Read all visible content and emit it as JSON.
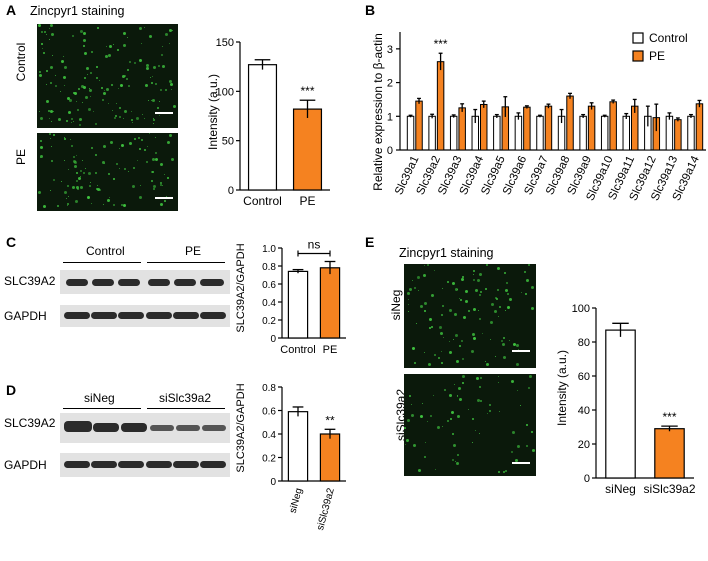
{
  "colors": {
    "control": "#ffffff",
    "treatment": "#f58220",
    "stroke": "#000000",
    "micro_bg": "#0b190b",
    "micro_dot": "#3fc43f",
    "blot_bg": "#e2e2e2",
    "band": "#2b2b2b"
  },
  "panelA": {
    "letter": "A",
    "title": "Zincpyr1 staining",
    "image_labels": [
      "Control",
      "PE"
    ],
    "chart": {
      "type": "bar",
      "categories": [
        "Control",
        "PE"
      ],
      "values": [
        127,
        82
      ],
      "errors": [
        5,
        9
      ],
      "ylabel": "Intensity (a.u.)",
      "ylim": [
        0,
        150
      ],
      "yticks": [
        "0",
        "50",
        "100",
        "150"
      ],
      "annotation": "***"
    }
  },
  "panelB": {
    "letter": "B",
    "chart": {
      "type": "bar",
      "ylabel": "Relative expression to β-actin",
      "ylim": [
        0,
        3.5
      ],
      "yticks": [
        "0",
        "1",
        "2",
        "3"
      ],
      "categories": [
        "Slc39a1",
        "Slc39a2",
        "Slc39a3",
        "Slc39a4",
        "Slc39a5",
        "Slc39a6",
        "Slc39a7",
        "Slc39a8",
        "Slc39a9",
        "Slc39a10",
        "Slc39a11",
        "Slc39a12",
        "Slc39a13",
        "Slc39a14"
      ],
      "series": [
        {
          "name": "Control",
          "values": [
            1.0,
            1.0,
            1.0,
            1.0,
            1.0,
            1.0,
            1.0,
            1.0,
            1.0,
            1.0,
            1.0,
            1.0,
            1.0,
            1.0
          ],
          "errors": [
            0.03,
            0.06,
            0.04,
            0.2,
            0.05,
            0.1,
            0.03,
            0.2,
            0.05,
            0.03,
            0.08,
            0.3,
            0.1,
            0.05
          ]
        },
        {
          "name": "PE",
          "values": [
            1.45,
            2.62,
            1.25,
            1.35,
            1.28,
            1.27,
            1.3,
            1.6,
            1.3,
            1.43,
            1.3,
            0.96,
            0.9,
            1.37
          ],
          "errors": [
            0.08,
            0.25,
            0.12,
            0.1,
            0.3,
            0.04,
            0.06,
            0.08,
            0.1,
            0.05,
            0.2,
            0.4,
            0.05,
            0.1
          ]
        }
      ],
      "annotation": "***",
      "legend": "top-right"
    }
  },
  "panelC": {
    "letter": "C",
    "group_labels": [
      "Control",
      "PE"
    ],
    "row_labels": [
      "SLC39A2",
      "GAPDH"
    ],
    "chart": {
      "type": "bar",
      "categories": [
        "Control",
        "PE"
      ],
      "values": [
        0.74,
        0.78
      ],
      "errors": [
        0.02,
        0.07
      ],
      "ylabel": "SLC39A2/GAPDH",
      "ylim": [
        0,
        1.0
      ],
      "yticks": [
        "0",
        "0.2",
        "0.4",
        "0.6",
        "0.8",
        "1.0"
      ],
      "annotation": "ns"
    }
  },
  "panelD": {
    "letter": "D",
    "group_labels": [
      "siNeg",
      "siSlc39a2"
    ],
    "row_labels": [
      "SLC39A2",
      "GAPDH"
    ],
    "chart": {
      "type": "bar",
      "categories": [
        "siNeg",
        "siSlc39a2"
      ],
      "values": [
        0.59,
        0.4
      ],
      "errors": [
        0.04,
        0.04
      ],
      "ylabel": "SLC39A2/GAPDH",
      "ylim": [
        0,
        0.8
      ],
      "yticks": [
        "0",
        "0.2",
        "0.4",
        "0.6",
        "0.8"
      ],
      "annotation": "**"
    }
  },
  "panelE": {
    "letter": "E",
    "title": "Zincpyr1 staining",
    "image_labels": [
      "siNeg",
      "siSlc39a2"
    ],
    "chart": {
      "type": "bar",
      "categories": [
        "siNeg",
        "siSlc39a2"
      ],
      "values": [
        87,
        29
      ],
      "errors": [
        4,
        1.5
      ],
      "ylabel": "Intensity (a.u.)",
      "ylim": [
        0,
        100
      ],
      "yticks": [
        "0",
        "20",
        "40",
        "60",
        "80",
        "100"
      ],
      "annotation": "***"
    }
  }
}
